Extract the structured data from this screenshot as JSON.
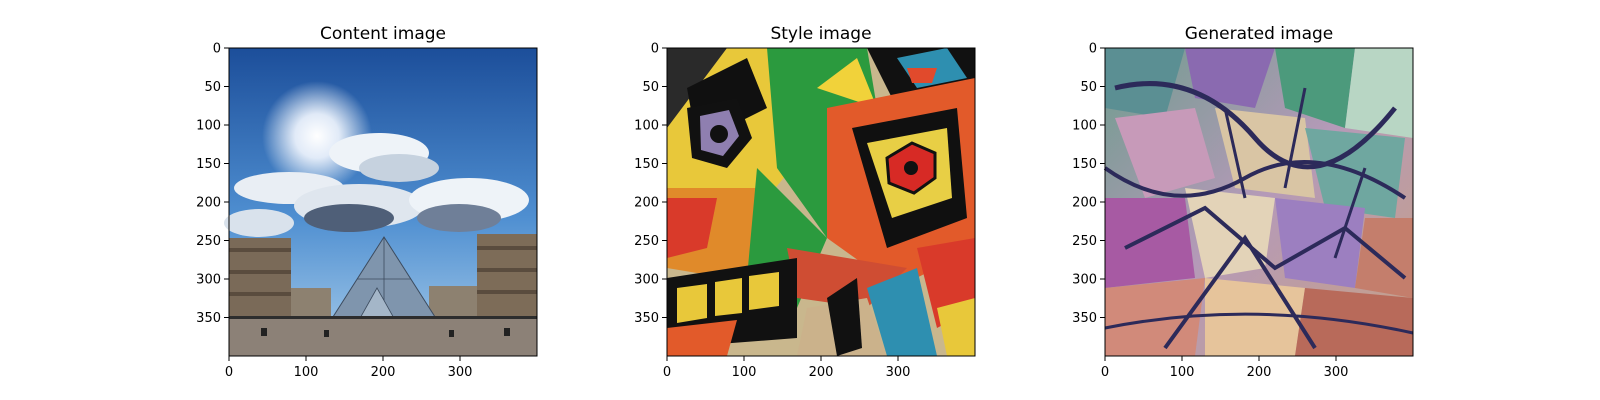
{
  "chart_data": [
    {
      "type": "image",
      "title": "Content image",
      "xticks": [
        0,
        100,
        200,
        300
      ],
      "yticks": [
        0,
        50,
        100,
        150,
        200,
        250,
        300,
        350
      ],
      "xlim": [
        0,
        400
      ],
      "ylim": [
        400,
        0
      ],
      "image_description": "Louvre glass pyramid under a sunny blue sky with white clouds"
    },
    {
      "type": "image",
      "title": "Style image",
      "xticks": [
        0,
        100,
        200,
        300
      ],
      "yticks": [
        0,
        50,
        100,
        150,
        200,
        250,
        300,
        350
      ],
      "xlim": [
        0,
        400
      ],
      "ylim": [
        400,
        0
      ],
      "image_description": "Cubist painting of a face with bold red, yellow, green and blue shapes"
    },
    {
      "type": "image",
      "title": "Generated image",
      "xticks": [
        0,
        100,
        200,
        300
      ],
      "yticks": [
        0,
        50,
        100,
        150,
        200,
        250,
        300,
        350
      ],
      "xlim": [
        0,
        400
      ],
      "ylim": [
        400,
        0
      ],
      "image_description": "Style-transferred Louvre scene rendered in cubist strokes"
    }
  ]
}
